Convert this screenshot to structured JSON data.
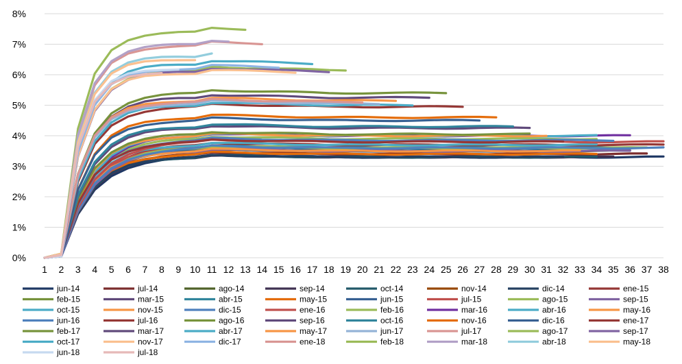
{
  "chart_data": {
    "type": "line",
    "title": "",
    "xlabel": "",
    "ylabel": "",
    "x": [
      1,
      2,
      3,
      4,
      5,
      6,
      7,
      8,
      9,
      10,
      11,
      12,
      13,
      14,
      15,
      16,
      17,
      18,
      19,
      20,
      21,
      22,
      23,
      24,
      25,
      26,
      27,
      28,
      29,
      30,
      31,
      32,
      33,
      34,
      35,
      36,
      37,
      38
    ],
    "ylim": [
      0,
      8
    ],
    "yticks": [
      0,
      1,
      2,
      3,
      4,
      5,
      6,
      7,
      8
    ],
    "ytick_labels": [
      "0%",
      "1%",
      "2%",
      "3%",
      "4%",
      "5%",
      "6%",
      "7%",
      "8%"
    ],
    "y_unit": "%",
    "grid": "horizontal",
    "legend_position": "bottom",
    "series": [
      {
        "name": "jun-14",
        "color": "#1f3864",
        "final": 3.3,
        "len": 38
      },
      {
        "name": "jul-14",
        "color": "#7b2c2c",
        "final": 3.4,
        "len": 37
      },
      {
        "name": "ago-14",
        "color": "#4f6228",
        "final": 3.5,
        "len": 36
      },
      {
        "name": "sep-14",
        "color": "#3f3151",
        "final": 3.3,
        "len": 35
      },
      {
        "name": "oct-14",
        "color": "#215868",
        "final": 3.3,
        "len": 34
      },
      {
        "name": "nov-14",
        "color": "#974806",
        "final": 3.4,
        "len": 33
      },
      {
        "name": "dic-14",
        "color": "#254061",
        "final": 3.3,
        "len": 32
      },
      {
        "name": "ene-15",
        "color": "#953735",
        "final": 3.7,
        "len": 38
      },
      {
        "name": "feb-15",
        "color": "#76923c",
        "final": 3.6,
        "len": 37
      },
      {
        "name": "mar-15",
        "color": "#5f497a",
        "final": 3.5,
        "len": 36
      },
      {
        "name": "abr-15",
        "color": "#31859c",
        "final": 3.6,
        "len": 35
      },
      {
        "name": "may-15",
        "color": "#e46c0a",
        "final": 3.4,
        "len": 34
      },
      {
        "name": "jun-15",
        "color": "#376092",
        "final": 3.5,
        "len": 33
      },
      {
        "name": "jul-15",
        "color": "#c0504d",
        "final": 3.6,
        "len": 32
      },
      {
        "name": "ago-15",
        "color": "#9bbb59",
        "final": 3.6,
        "len": 37
      },
      {
        "name": "sep-15",
        "color": "#8064a2",
        "final": 3.5,
        "len": 36
      },
      {
        "name": "oct-15",
        "color": "#4bacc6",
        "final": 3.7,
        "len": 34
      },
      {
        "name": "nov-15",
        "color": "#f79646",
        "final": 3.5,
        "len": 33
      },
      {
        "name": "dic-15",
        "color": "#4f81bd",
        "final": 3.6,
        "len": 38
      },
      {
        "name": "ene-16",
        "color": "#c0504d",
        "final": 3.8,
        "len": 38
      },
      {
        "name": "feb-16",
        "color": "#9bbb59",
        "final": 3.9,
        "len": 34
      },
      {
        "name": "mar-16",
        "color": "#7030a0",
        "final": 4.0,
        "len": 36
      },
      {
        "name": "abr-16",
        "color": "#4bacc6",
        "final": 4.0,
        "len": 34
      },
      {
        "name": "may-16",
        "color": "#f79646",
        "final": 4.0,
        "len": 31
      },
      {
        "name": "jun-16",
        "color": "#4f81bd",
        "final": 3.85,
        "len": 35
      },
      {
        "name": "jul-16",
        "color": "#953735",
        "final": 3.8,
        "len": 32
      },
      {
        "name": "ago-16",
        "color": "#77933c",
        "final": 4.05,
        "len": 30
      },
      {
        "name": "sep-16",
        "color": "#604a7b",
        "final": 4.25,
        "len": 30
      },
      {
        "name": "oct-16",
        "color": "#31859c",
        "final": 4.3,
        "len": 29
      },
      {
        "name": "nov-16",
        "color": "#e46c0a",
        "final": 4.6,
        "len": 28
      },
      {
        "name": "dic-16",
        "color": "#376092",
        "final": 4.5,
        "len": 27
      },
      {
        "name": "ene-17",
        "color": "#953735",
        "final": 4.95,
        "len": 26
      },
      {
        "name": "feb-17",
        "color": "#77933c",
        "final": 5.4,
        "len": 25
      },
      {
        "name": "mar-17",
        "color": "#604a7b",
        "final": 5.25,
        "len": 24
      },
      {
        "name": "abr-17",
        "color": "#4bacc6",
        "final": 5.0,
        "len": 23
      },
      {
        "name": "may-17",
        "color": "#f79646",
        "final": 5.15,
        "len": 22
      },
      {
        "name": "jun-17",
        "color": "#95b3d7",
        "final": 5.05,
        "len": 21
      },
      {
        "name": "jul-17",
        "color": "#d99694",
        "final": 5.1,
        "len": 20
      },
      {
        "name": "ago-17",
        "color": "#9bbb59",
        "final": 6.15,
        "len": 19
      },
      {
        "name": "sep-17",
        "color": "#8064a2",
        "final": 6.1,
        "len": 18
      },
      {
        "name": "oct-17",
        "color": "#4bacc6",
        "final": 6.35,
        "len": 17
      },
      {
        "name": "nov-17",
        "color": "#fac090",
        "final": 6.05,
        "len": 16
      },
      {
        "name": "dic-17",
        "color": "#8eb4e3",
        "final": 6.2,
        "len": 15
      },
      {
        "name": "ene-18",
        "color": "#d99694",
        "final": 6.95,
        "len": 14
      },
      {
        "name": "feb-18",
        "color": "#9bbb59",
        "final": 7.4,
        "len": 13
      },
      {
        "name": "mar-18",
        "color": "#b2a1c7",
        "final": 7.0,
        "len": 12
      },
      {
        "name": "abr-18",
        "color": "#93cddd",
        "final": 6.6,
        "len": 11
      },
      {
        "name": "may-18",
        "color": "#fac090",
        "final": 6.5,
        "len": 10
      },
      {
        "name": "jun-18",
        "color": "#c6d9f0",
        "final": 6.2,
        "len": 9
      },
      {
        "name": "jul-18",
        "color": "#e6b9b8",
        "final": 6.1,
        "len": 8
      }
    ]
  }
}
